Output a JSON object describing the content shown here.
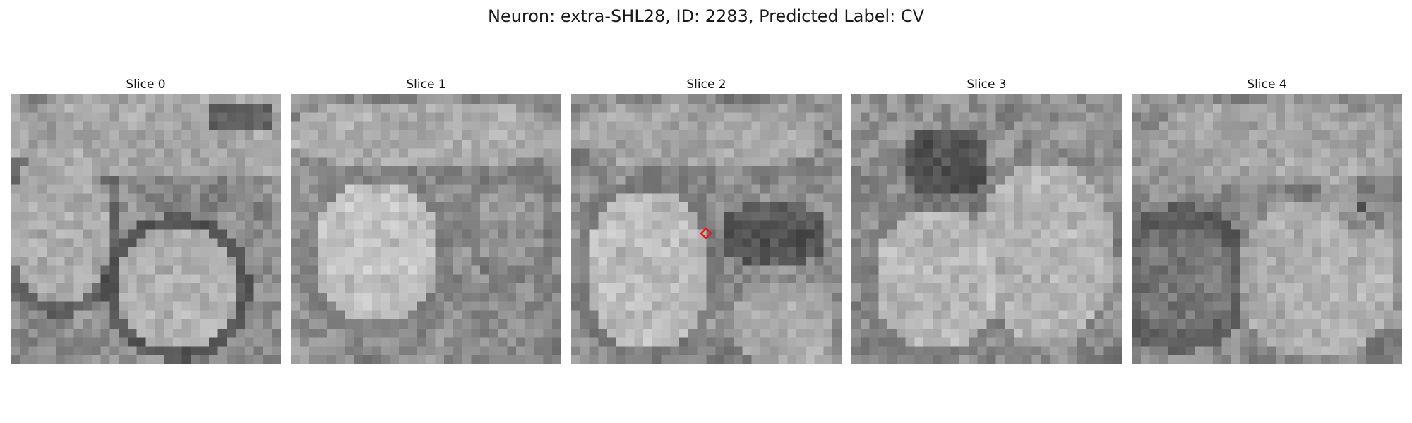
{
  "figure": {
    "title": "Neuron: extra-SHL28, ID: 2283, Predicted Label: CV"
  },
  "slices": [
    {
      "title": "Slice 0",
      "seed": 11,
      "marked": false
    },
    {
      "title": "Slice 1",
      "seed": 23,
      "marked": false
    },
    {
      "title": "Slice 2",
      "seed": 37,
      "marked": true
    },
    {
      "title": "Slice 3",
      "seed": 41,
      "marked": false
    },
    {
      "title": "Slice 4",
      "seed": 53,
      "marked": false
    }
  ],
  "marker": {
    "color": "#e41a1c",
    "shape": "diamond"
  },
  "colormap": "gray"
}
